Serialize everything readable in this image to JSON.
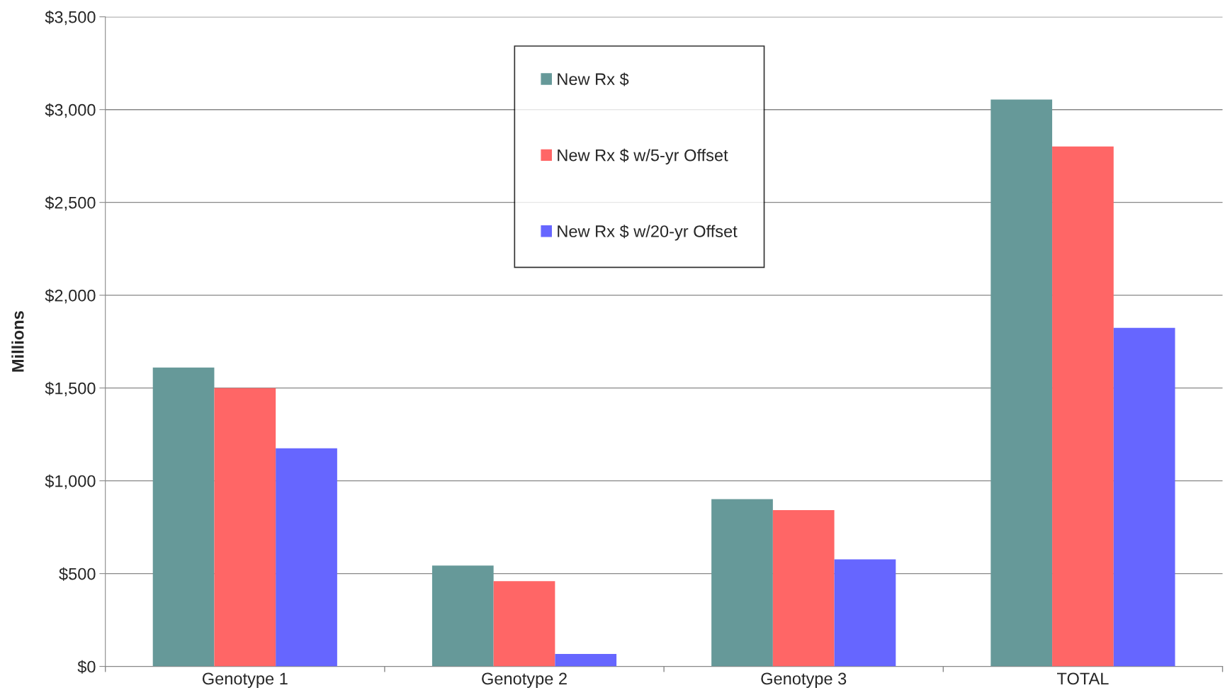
{
  "chart_data": {
    "type": "bar",
    "ylabel": "Millions",
    "categories": [
      "Genotype 1",
      "Genotype 2",
      "Genotype 3",
      "TOTAL"
    ],
    "series": [
      {
        "name": "New Rx $",
        "color": "#669999",
        "values": [
          1610,
          543,
          901,
          3054
        ]
      },
      {
        "name": "New Rx $ w/5-yr Offset",
        "color": "#ff6666",
        "values": [
          1500,
          459,
          842,
          2801
        ]
      },
      {
        "name": "New Rx $ w/20-yr Offset",
        "color": "#6666ff",
        "values": [
          1175,
          67,
          577,
          1824
        ]
      }
    ],
    "ylim": [
      0,
      3500
    ],
    "yticks": [
      {
        "value": 0,
        "label": "$0"
      },
      {
        "value": 500,
        "label": "$500"
      },
      {
        "value": 1000,
        "label": "$1,000"
      },
      {
        "value": 1500,
        "label": "$1,500"
      },
      {
        "value": 2000,
        "label": "$2,000"
      },
      {
        "value": 2500,
        "label": "$2,500"
      },
      {
        "value": 3000,
        "label": "$3,000"
      },
      {
        "value": 3500,
        "label": "$3,500"
      }
    ],
    "grid": "y",
    "legend": "top"
  }
}
